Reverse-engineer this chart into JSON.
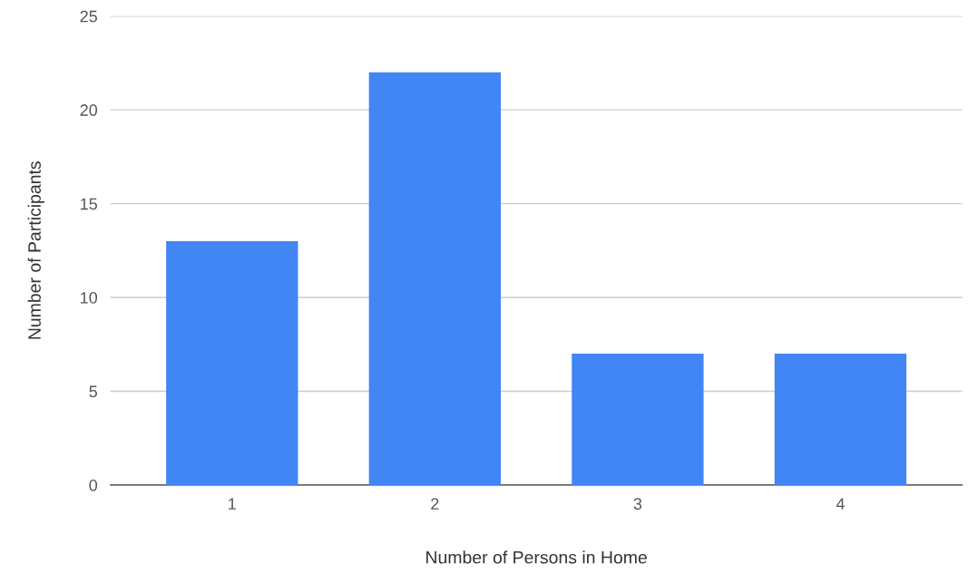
{
  "chart_data": {
    "type": "bar",
    "xlabel": "Number of Persons in Home",
    "ylabel": "Number of Participants",
    "categories": [
      "1",
      "2",
      "3",
      "4"
    ],
    "values": [
      13,
      22,
      7,
      7
    ],
    "color": "#4285f4",
    "ylim": [
      0,
      25
    ],
    "yticks": [
      0,
      5,
      10,
      15,
      20,
      25
    ],
    "grid": "y"
  }
}
